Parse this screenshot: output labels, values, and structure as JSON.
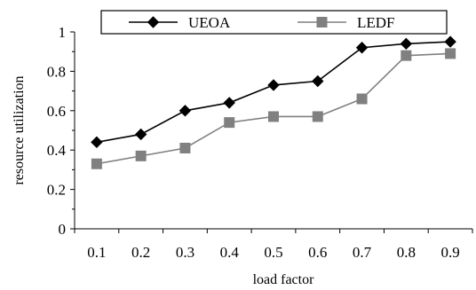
{
  "chart_data": {
    "type": "line",
    "title": "",
    "xlabel": "load factor",
    "ylabel": "resource utilization",
    "categories": [
      "0.1",
      "0.2",
      "0.3",
      "0.4",
      "0.5",
      "0.6",
      "0.7",
      "0.8",
      "0.9"
    ],
    "yticks": [
      "0",
      "0.2",
      "0.4",
      "0.6",
      "0.8",
      "1"
    ],
    "ylim": [
      0,
      1
    ],
    "grid": false,
    "legend_position": "top",
    "series": [
      {
        "name": "UEOA",
        "color": "#000000",
        "marker": "diamond",
        "values": [
          0.44,
          0.48,
          0.6,
          0.64,
          0.73,
          0.75,
          0.92,
          0.94,
          0.95
        ]
      },
      {
        "name": "LEDF",
        "color": "#808080",
        "marker": "square",
        "values": [
          0.33,
          0.37,
          0.41,
          0.54,
          0.57,
          0.57,
          0.66,
          0.88,
          0.89
        ]
      }
    ]
  }
}
